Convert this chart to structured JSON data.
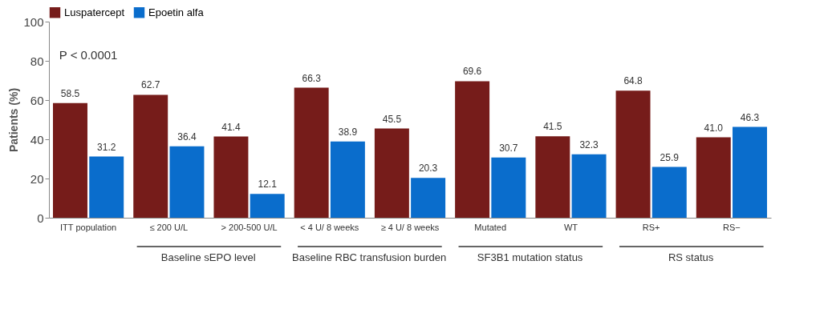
{
  "chart_data": {
    "type": "bar",
    "ylabel": "Patients (%)",
    "categories": [
      "ITT population",
      "≤ 200 U/L",
      "> 200-500 U/L",
      "< 4 U/ 8 weeks",
      "≥ 4 U/ 8 weeks",
      "Mutated",
      "WT",
      "RS+",
      "RS−"
    ],
    "series": [
      {
        "name": "Luspatercept",
        "color": "#761c1a",
        "values": [
          58.5,
          62.7,
          41.4,
          66.3,
          45.5,
          69.6,
          41.5,
          64.8,
          41.0
        ],
        "value_labels": [
          "58.5",
          "62.7",
          "41.4",
          "66.3",
          "45.5",
          "69.6",
          "41.5",
          "64.8",
          "41.0"
        ]
      },
      {
        "name": "Epoetin alfa",
        "color": "#0a6dcc",
        "values": [
          31.2,
          36.4,
          12.1,
          38.9,
          20.3,
          30.7,
          32.3,
          25.9,
          46.3
        ],
        "value_labels": [
          "31.2",
          "36.4",
          "12.1",
          "38.9",
          "20.3",
          "30.7",
          "32.3",
          "25.9",
          "46.3"
        ]
      }
    ],
    "ylim": [
      0,
      100
    ],
    "yticks": [
      0,
      20,
      40,
      60,
      80,
      100
    ],
    "grid": false,
    "legend": "top",
    "annotations": [
      "P < 0.0001",
      "Baseline sEPO level",
      "Baseline RBC transfusion burden",
      "SF3B1 mutation status",
      "RS status"
    ]
  }
}
